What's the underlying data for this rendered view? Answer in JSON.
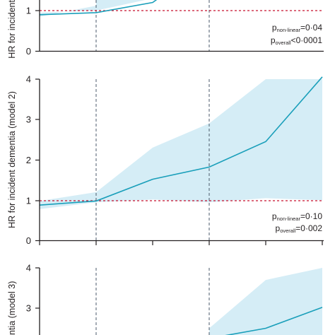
{
  "colors": {
    "line": "#1a9fba",
    "band": "#d5edf6",
    "reference": "#c8102e",
    "guide": "#4b5a6b",
    "axis": "#231f20"
  },
  "chart_data": [
    {
      "type": "line",
      "panel": "model 1 (partial)",
      "ylabel": "HR for incident",
      "yticks": [
        "1",
        "0"
      ],
      "ylim": [
        0,
        1.3
      ],
      "reference_line": 1,
      "x": [
        0,
        1
      ],
      "values": [
        0.9,
        0.95
      ],
      "annotation": {
        "line1": {
          "p": "p",
          "sub": "non-linear",
          "eq": "=0·04"
        },
        "line2": {
          "p": "p",
          "sub": "overall",
          "eq": "<0·0001"
        }
      }
    },
    {
      "type": "line",
      "panel": "model 2",
      "ylabel": "HR for incident dementia (model 2)",
      "yticks": [
        "4",
        "3",
        "2",
        "1",
        "0"
      ],
      "ylim": [
        0,
        4
      ],
      "reference_line": 1,
      "x": [
        0,
        1,
        2,
        3,
        4,
        5
      ],
      "values": [
        0.88,
        0.98,
        1.52,
        1.82,
        2.45,
        4.05
      ],
      "lower": [
        0.78,
        0.95,
        1.02,
        0.95,
        1.05,
        1.0
      ],
      "upper": [
        0.98,
        1.2,
        2.3,
        2.9,
        4.0,
        4.0
      ],
      "annotation": {
        "line1": {
          "p": "p",
          "sub": "non-linear",
          "eq": "=0·10"
        },
        "line2": {
          "p": "p",
          "sub": "overall",
          "eq": "=0·002"
        }
      }
    },
    {
      "type": "line",
      "panel": "model 3 (partial)",
      "ylabel": "ntia (model 3)",
      "yticks": [
        "4",
        "3"
      ],
      "ylim": [
        2,
        4
      ],
      "x": [
        3,
        4,
        5
      ],
      "values": [
        2.25,
        2.5,
        3.02
      ],
      "lower": [
        2.1,
        2.2,
        2.3
      ],
      "upper": [
        2.5,
        3.7,
        4.0
      ]
    }
  ]
}
